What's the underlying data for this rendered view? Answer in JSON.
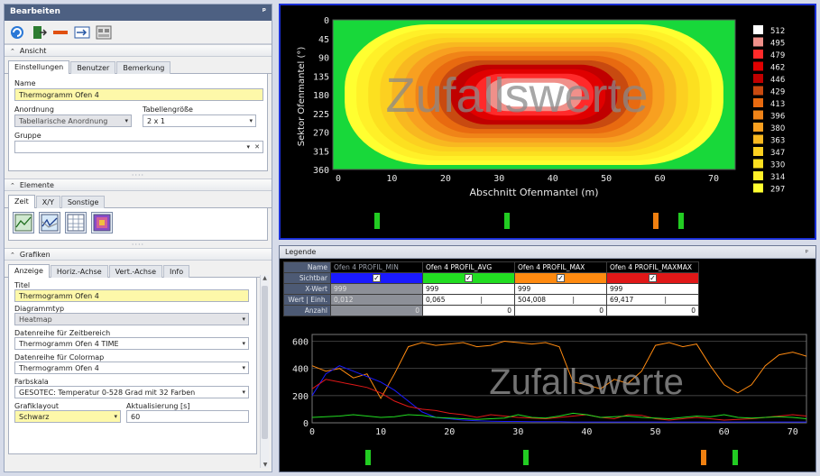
{
  "left_panel": {
    "title": "Bearbeiten",
    "pin": "ᵖ",
    "ansicht": {
      "header": "Ansicht",
      "tabs": [
        "Einstellungen",
        "Benutzer",
        "Bemerkung"
      ],
      "name_label": "Name",
      "name_value": "Thermogramm Ofen 4",
      "anordnung_label": "Anordnung",
      "anordnung_value": "Tabellarische Anordnung",
      "tabellengroesse_label": "Tabellengröße",
      "tabellengroesse_value": "2 x 1",
      "gruppe_label": "Gruppe",
      "gruppe_value": ""
    },
    "elemente": {
      "header": "Elemente",
      "tabs": [
        "Zeit",
        "X/Y",
        "Sonstige"
      ]
    },
    "grafiken": {
      "header": "Grafiken",
      "tabs": [
        "Anzeige",
        "Horiz.-Achse",
        "Vert.-Achse",
        "Info"
      ],
      "titel_label": "Titel",
      "titel_value": "Thermogramm Ofen 4",
      "diagrammtyp_label": "Diagrammtyp",
      "diagrammtyp_value": "Heatmap",
      "zeitbereich_label": "Datenreihe für Zeitbereich",
      "zeitbereich_value": "Thermogramm Ofen 4 TIME",
      "colormap_label": "Datenreihe für Colormap",
      "colormap_value": "Thermogramm Ofen 4",
      "farbskala_label": "Farbskala",
      "farbskala_value": "GESOTEC: Temperatur 0-528 Grad mit 32 Farben",
      "grafiklayout_label": "Grafiklayout",
      "grafiklayout_value": "Schwarz",
      "aktualisierung_label": "Aktualisierung [s]",
      "aktualisierung_value": "60"
    }
  },
  "heatmap": {
    "watermark": "Zufallswerte",
    "xlabel": "Abschnitt Ofenmantel (m)",
    "ylabel": "Sektor Ofenmantel (°)",
    "xticks": [
      "0",
      "10",
      "20",
      "30",
      "40",
      "50",
      "60",
      "70"
    ],
    "yticks": [
      "0",
      "45",
      "90",
      "135",
      "180",
      "225",
      "270",
      "315",
      "360"
    ],
    "colorscale": [
      {
        "label": "512",
        "color": "#ffffff"
      },
      {
        "label": "495",
        "color": "#f0908a"
      },
      {
        "label": "479",
        "color": "#ff2a2a"
      },
      {
        "label": "462",
        "color": "#e00000"
      },
      {
        "label": "446",
        "color": "#c00000"
      },
      {
        "label": "429",
        "color": "#c84a10"
      },
      {
        "label": "413",
        "color": "#e86a10"
      },
      {
        "label": "396",
        "color": "#f08418"
      },
      {
        "label": "380",
        "color": "#f8a020"
      },
      {
        "label": "363",
        "color": "#f8b820"
      },
      {
        "label": "347",
        "color": "#fcd020"
      },
      {
        "label": "330",
        "color": "#fce020"
      },
      {
        "label": "314",
        "color": "#fff028"
      },
      {
        "label": "297",
        "color": "#ffff30"
      }
    ],
    "marker_colors": [
      "#22cc22",
      "#22cc22",
      "#f08010",
      "#22cc22"
    ]
  },
  "legend": {
    "header": "Legende",
    "pin": "ᵖ",
    "row_labels": [
      "Name",
      "Sichtbar",
      "X-Wert",
      "Wert",
      "Einh.",
      "Anzahl"
    ],
    "columns": [
      {
        "name": "Ofen 4 PROFIL_MIN",
        "color": "#1a1aff",
        "visible": "✓",
        "x": "999",
        "wert": "0,012",
        "anzahl": "0",
        "dim": true
      },
      {
        "name": "Ofen 4 PROFIL_AVG",
        "color": "#22dd22",
        "visible": "✓",
        "x": "999",
        "wert": "0,065",
        "anzahl": "0",
        "dim": false
      },
      {
        "name": "Ofen 4 PROFIL_MAX",
        "color": "#ff8a10",
        "visible": "✓",
        "x": "999",
        "wert": "504,008",
        "anzahl": "0",
        "dim": false
      },
      {
        "name": "Ofen 4 PROFIL_MAXMAX",
        "color": "#e01818",
        "visible": "✓",
        "x": "999",
        "wert": "69,417",
        "anzahl": "0",
        "dim": false
      }
    ]
  },
  "chart_data": {
    "type": "line",
    "watermark": "Zufallswerte",
    "xticks": [
      "0",
      "10",
      "20",
      "30",
      "40",
      "50",
      "60",
      "70"
    ],
    "yticks": [
      "0",
      "200",
      "400",
      "600"
    ],
    "xlim": [
      0,
      72
    ],
    "ylim": [
      0,
      650
    ],
    "grid": true,
    "series": [
      {
        "name": "Ofen 4 PROFIL_MAX",
        "color": "#ff8a10",
        "x": [
          0,
          2,
          4,
          6,
          8,
          10,
          12,
          14,
          16,
          18,
          20,
          22,
          24,
          26,
          28,
          30,
          32,
          34,
          36,
          38,
          40,
          42,
          44,
          46,
          48,
          50,
          52,
          54,
          56,
          58,
          60,
          62,
          64,
          66,
          68,
          70,
          72
        ],
        "values": [
          420,
          380,
          400,
          330,
          360,
          180,
          360,
          560,
          590,
          570,
          580,
          590,
          560,
          570,
          600,
          590,
          580,
          590,
          560,
          300,
          280,
          250,
          320,
          290,
          380,
          570,
          590,
          560,
          580,
          420,
          280,
          220,
          280,
          420,
          500,
          520,
          490
        ]
      },
      {
        "name": "Ofen 4 PROFIL_MIN",
        "color": "#1a1aff",
        "x": [
          0,
          2,
          4,
          6,
          8,
          10,
          12,
          14,
          16,
          18,
          20,
          22,
          24,
          26,
          28,
          30,
          32,
          34,
          36,
          38,
          40,
          42,
          44,
          46,
          48,
          50,
          52,
          54,
          56,
          58,
          60,
          62,
          64,
          66,
          68,
          70,
          72
        ],
        "values": [
          200,
          360,
          420,
          380,
          340,
          300,
          240,
          160,
          80,
          40,
          30,
          20,
          15,
          12,
          10,
          10,
          8,
          8,
          8,
          6,
          6,
          6,
          6,
          6,
          6,
          6,
          6,
          6,
          6,
          6,
          6,
          6,
          6,
          6,
          6,
          6,
          6
        ]
      },
      {
        "name": "Ofen 4 PROFIL_MAXMAX",
        "color": "#e01818",
        "x": [
          0,
          2,
          4,
          6,
          8,
          10,
          12,
          14,
          16,
          18,
          20,
          22,
          24,
          26,
          28,
          30,
          32,
          34,
          36,
          38,
          40,
          42,
          44,
          46,
          48,
          50,
          52,
          54,
          56,
          58,
          60,
          62,
          64,
          66,
          68,
          70,
          72
        ],
        "values": [
          250,
          320,
          300,
          280,
          260,
          220,
          160,
          120,
          100,
          90,
          70,
          60,
          40,
          60,
          50,
          40,
          35,
          30,
          40,
          50,
          60,
          40,
          30,
          60,
          55,
          30,
          20,
          30,
          40,
          30,
          20,
          25,
          30,
          40,
          50,
          60,
          50
        ]
      },
      {
        "name": "Ofen 4 PROFIL_AVG",
        "color": "#22dd22",
        "x": [
          0,
          2,
          4,
          6,
          8,
          10,
          12,
          14,
          16,
          18,
          20,
          22,
          24,
          26,
          28,
          30,
          32,
          34,
          36,
          38,
          40,
          42,
          44,
          46,
          48,
          50,
          52,
          54,
          56,
          58,
          60,
          62,
          64,
          66,
          68,
          70,
          72
        ],
        "values": [
          40,
          45,
          50,
          60,
          50,
          40,
          45,
          60,
          55,
          40,
          35,
          30,
          25,
          30,
          35,
          60,
          40,
          35,
          50,
          70,
          60,
          40,
          45,
          50,
          40,
          35,
          30,
          40,
          50,
          45,
          60,
          40,
          35,
          40,
          45,
          40,
          30
        ]
      }
    ],
    "marker_colors": [
      "#22cc22",
      "#22cc22",
      "#f08010",
      "#22cc22"
    ]
  }
}
